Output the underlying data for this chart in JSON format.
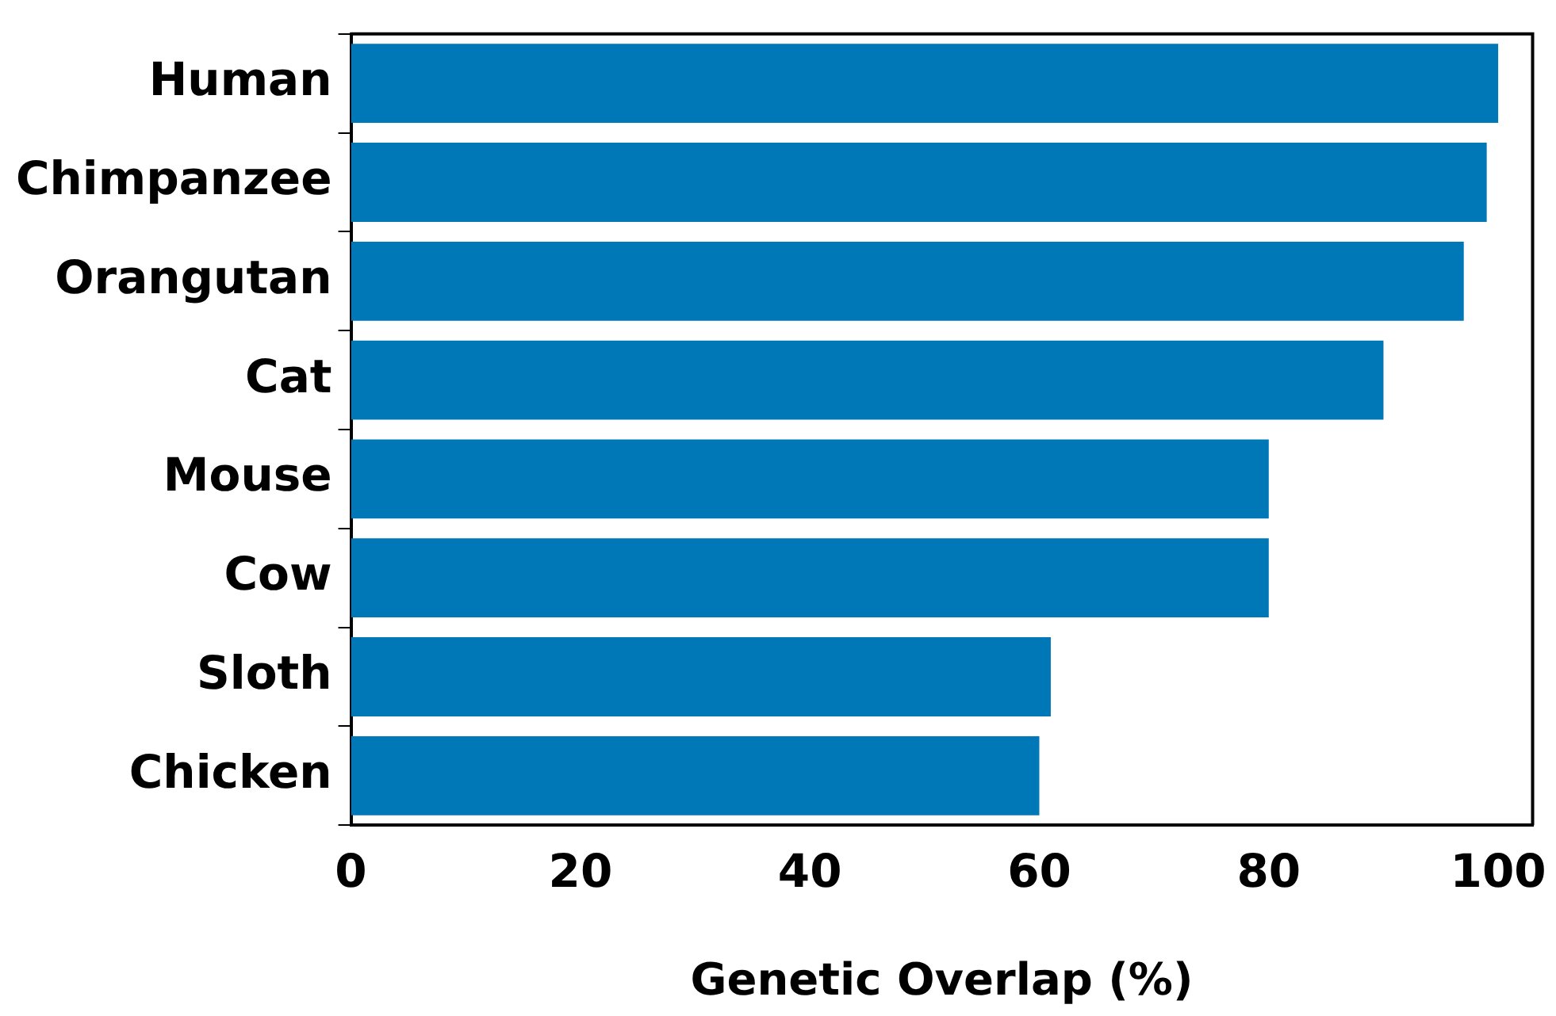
{
  "chart_data": {
    "type": "bar",
    "orientation": "horizontal",
    "xlabel": "Genetic Overlap (%)",
    "categories": [
      "Human",
      "Chimpanzee",
      "Orangutan",
      "Cat",
      "Mouse",
      "Cow",
      "Sloth",
      "Chicken"
    ],
    "values": [
      100,
      99,
      97,
      90,
      80,
      80,
      61,
      60
    ],
    "color": "#0077b6",
    "xlim": [
      0,
      103
    ],
    "xticks": [
      0,
      20,
      40,
      60,
      80,
      100
    ],
    "grid": false,
    "legend": false
  }
}
